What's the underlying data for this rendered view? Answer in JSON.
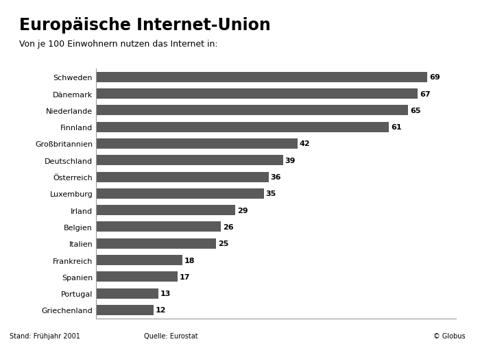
{
  "chart_data": {
    "type": "bar",
    "orientation": "horizontal",
    "title": "Europäische Internet-Union",
    "subtitle": "Von je 100 Einwohnern nutzen das Internet in:",
    "categories": [
      "Schweden",
      "Dänemark",
      "Niederlande",
      "Finnland",
      "Großbritannien",
      "Deutschland",
      "Österreich",
      "Luxemburg",
      "Irland",
      "Belgien",
      "Italien",
      "Frankreich",
      "Spanien",
      "Portugal",
      "Griechenland"
    ],
    "values": [
      69,
      67,
      65,
      61,
      42,
      39,
      36,
      35,
      29,
      26,
      25,
      18,
      17,
      13,
      12
    ],
    "color": "#5a5a5a",
    "xlim": [
      0,
      75
    ],
    "data_labels": true,
    "tick_labels": "y",
    "grid": false,
    "annotations": [
      "Stand: Frühjahr 2001",
      "Quelle: Eurostat",
      "© Globus"
    ]
  }
}
